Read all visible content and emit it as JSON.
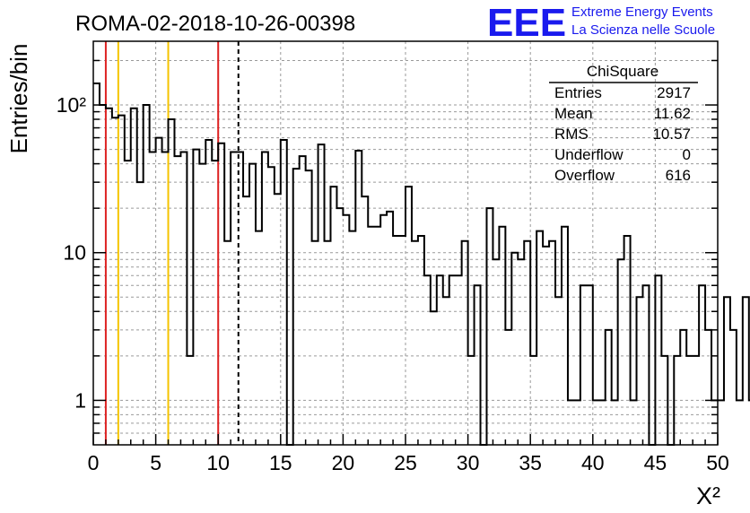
{
  "chart_data": {
    "type": "histogram",
    "title": "ROMA-02-2018-10-26-00398",
    "xlabel": "X²",
    "ylabel": "Entries/bin",
    "xlim": [
      0,
      50
    ],
    "ylim": [
      0.5,
      270
    ],
    "yscale": "log",
    "grid": true,
    "bin_width": 0.5,
    "x_ticks": [
      "0",
      "5",
      "10",
      "15",
      "20",
      "25",
      "30",
      "35",
      "40",
      "45",
      "50"
    ],
    "y_ticks": [
      {
        "value": 1,
        "label": "1"
      },
      {
        "value": 10,
        "label": "10"
      },
      {
        "value": 100,
        "label": "10²"
      }
    ],
    "counts": [
      140,
      100,
      95,
      82,
      85,
      42,
      95,
      30,
      100,
      48,
      60,
      48,
      80,
      45,
      48,
      2,
      50,
      40,
      58,
      42,
      55,
      12,
      48,
      48,
      24,
      40,
      14,
      48,
      38,
      25,
      58,
      0.5,
      37,
      45,
      36,
      12,
      54,
      12,
      28,
      20,
      18,
      14,
      49,
      24,
      15,
      15,
      18,
      19,
      13,
      13,
      28,
      12,
      13,
      7,
      4,
      7,
      5,
      7,
      7,
      12,
      2,
      6,
      0.5,
      20,
      9,
      15,
      3,
      10,
      9,
      12,
      2,
      14,
      11,
      12,
      5,
      15,
      1,
      1,
      6,
      6,
      1,
      1,
      3,
      1,
      9,
      13,
      1,
      5,
      6,
      0.5,
      7,
      2,
      0.5,
      2,
      3,
      2,
      2,
      6,
      3,
      1,
      1,
      5,
      3,
      1,
      5,
      1,
      1,
      4
    ],
    "line_color": "#000000",
    "vertical_lines": [
      {
        "x": 1,
        "color": "#dd2222"
      },
      {
        "x": 2,
        "color": "#f5c400"
      },
      {
        "x": 6,
        "color": "#f5c400"
      },
      {
        "x": 10,
        "color": "#dd2222"
      },
      {
        "x": 11.62,
        "color": "#000000",
        "dashed": true
      }
    ],
    "stats_box": {
      "title": "ChiSquare",
      "rows": [
        {
          "label": "Entries",
          "value": "2917"
        },
        {
          "label": "Mean",
          "value": "11.62"
        },
        {
          "label": "RMS",
          "value": "10.57"
        },
        {
          "label": "Underflow",
          "value": "0"
        },
        {
          "label": "Overflow",
          "value": "616"
        }
      ]
    }
  },
  "logo": {
    "text": "EEE",
    "line1": "Extreme Energy Events",
    "line2": "La Scienza nelle Scuole",
    "color": "#1a1aee"
  }
}
